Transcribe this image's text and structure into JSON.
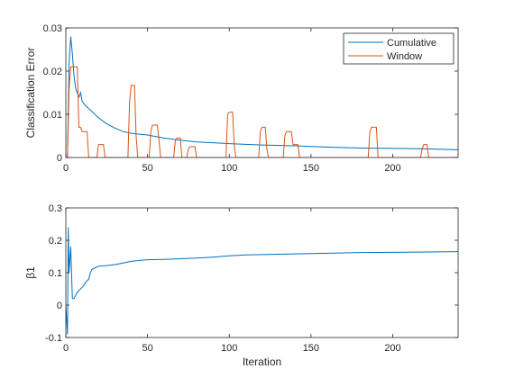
{
  "colors": {
    "series1": "#0072BD",
    "series2": "#D95319",
    "axis": "#262626",
    "background": "#ffffff"
  },
  "chart_data": [
    {
      "type": "line",
      "xlabel": "",
      "ylabel": "Classification Error",
      "xlim": [
        0,
        240
      ],
      "ylim": [
        0,
        0.03
      ],
      "xticks": [
        0,
        50,
        100,
        150,
        200
      ],
      "yticks": [
        0,
        0.01,
        0.02,
        0.03
      ],
      "xtick_labels": [
        "0",
        "50",
        "100",
        "150",
        "200"
      ],
      "ytick_labels": [
        "0",
        "0.01",
        "0.02",
        "0.03"
      ],
      "grid": false,
      "legend": {
        "position": "top-right",
        "entries": [
          "Cumulative",
          "Window"
        ]
      },
      "series": [
        {
          "name": "Cumulative",
          "x": [
            1,
            2,
            3,
            4,
            5,
            6,
            8,
            9,
            10,
            12,
            15,
            20,
            25,
            30,
            35,
            40,
            45,
            50,
            60,
            70,
            80,
            90,
            100,
            120,
            140,
            160,
            180,
            200,
            220,
            240
          ],
          "y": [
            0.0,
            0.022,
            0.028,
            0.024,
            0.019,
            0.016,
            0.014,
            0.015,
            0.013,
            0.012,
            0.011,
            0.0092,
            0.0078,
            0.0068,
            0.006,
            0.0056,
            0.0054,
            0.0052,
            0.0045,
            0.004,
            0.0036,
            0.0034,
            0.0032,
            0.0029,
            0.0027,
            0.0024,
            0.0022,
            0.0021,
            0.002,
            0.0018
          ]
        },
        {
          "name": "Window",
          "x": [
            0,
            1,
            2,
            3,
            4,
            5,
            7,
            8,
            9,
            10,
            13,
            14,
            15,
            19,
            20,
            21,
            23,
            24,
            25,
            38,
            39,
            40,
            42,
            43,
            44,
            51,
            52,
            53,
            56,
            57,
            58,
            66,
            67,
            68,
            70,
            71,
            72,
            74,
            75,
            76,
            79,
            80,
            81,
            98,
            99,
            100,
            102,
            103,
            104,
            118,
            119,
            120,
            122,
            123,
            124,
            133,
            134,
            135,
            138,
            139,
            140,
            142,
            143,
            144,
            185,
            186,
            187,
            190,
            191,
            192,
            217,
            218,
            219,
            221,
            222,
            223,
            240
          ],
          "y": [
            0,
            0,
            0.016,
            0.021,
            0.021,
            0.021,
            0.021,
            0.007,
            0.007,
            0.006,
            0.006,
            0.0,
            0.0,
            0.0,
            0.003,
            0.003,
            0.003,
            0.0,
            0.0,
            0.0,
            0.013,
            0.0167,
            0.0167,
            0.005,
            0.0,
            0.0,
            0.006,
            0.0075,
            0.0075,
            0.004,
            0.0,
            0.0,
            0.004,
            0.0045,
            0.0045,
            0.0,
            0.0,
            0.0,
            0.002,
            0.0025,
            0.0025,
            0.0,
            0.0,
            0.0,
            0.01,
            0.0105,
            0.0105,
            0.003,
            0.0,
            0.0,
            0.006,
            0.007,
            0.007,
            0.002,
            0.0,
            0.0,
            0.005,
            0.006,
            0.006,
            0.003,
            0.003,
            0.003,
            0.0,
            0.0,
            0.0,
            0.006,
            0.007,
            0.007,
            0.0,
            0.0,
            0.0,
            0.002,
            0.003,
            0.003,
            0.0,
            0.0,
            0.0
          ]
        }
      ]
    },
    {
      "type": "line",
      "xlabel": "Iteration",
      "ylabel": "β1",
      "xlim": [
        0,
        240
      ],
      "ylim": [
        -0.1,
        0.3
      ],
      "xticks": [
        0,
        50,
        100,
        150,
        200
      ],
      "yticks": [
        -0.1,
        0,
        0.1,
        0.2,
        0.3
      ],
      "xtick_labels": [
        "0",
        "50",
        "100",
        "150",
        "200"
      ],
      "ytick_labels": [
        "-0.1",
        "0",
        "0.1",
        "0.2",
        "0.3"
      ],
      "grid": false,
      "series": [
        {
          "x": [
            0,
            1,
            1.5,
            2,
            3,
            4,
            5,
            6,
            7,
            8,
            9,
            10,
            11,
            12,
            13,
            14,
            15,
            16,
            18,
            20,
            25,
            30,
            35,
            40,
            45,
            50,
            60,
            70,
            80,
            90,
            100,
            110,
            120,
            140,
            160,
            180,
            200,
            220,
            240
          ],
          "y": [
            0.0,
            -0.09,
            0.24,
            0.1,
            0.18,
            0.02,
            0.02,
            0.03,
            0.04,
            0.045,
            0.05,
            0.055,
            0.06,
            0.07,
            0.075,
            0.08,
            0.1,
            0.11,
            0.115,
            0.12,
            0.122,
            0.125,
            0.13,
            0.135,
            0.138,
            0.14,
            0.141,
            0.143,
            0.145,
            0.148,
            0.152,
            0.155,
            0.156,
            0.158,
            0.16,
            0.162,
            0.163,
            0.164,
            0.165
          ]
        }
      ]
    }
  ]
}
